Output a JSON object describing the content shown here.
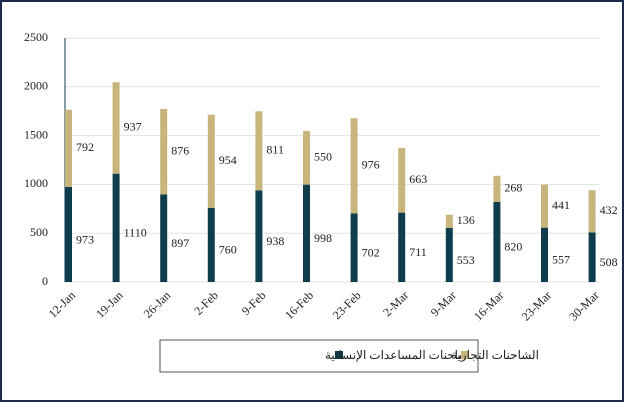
{
  "chart_data": {
    "type": "stacked_bar",
    "categories": [
      "12-Jan",
      "19-Jan",
      "26-Jan",
      "2-Feb",
      "9-Feb",
      "16-Feb",
      "23-Feb",
      "2-Mar",
      "9-Mar",
      "16-Mar",
      "23-Mar",
      "30-Mar"
    ],
    "series": [
      {
        "name": "شاحنات المساعدات الإنسانية",
        "color": "#0e3d4e",
        "values": [
          973,
          1110,
          897,
          760,
          938,
          998,
          702,
          711,
          553,
          820,
          557,
          508
        ]
      },
      {
        "name": "الشاحنات التجارية",
        "color": "#c8b57c",
        "values": [
          792,
          937,
          876,
          954,
          811,
          550,
          976,
          663,
          136,
          268,
          441,
          432
        ]
      }
    ],
    "ylim": [
      0,
      2500
    ],
    "yticks": [
      0,
      500,
      1000,
      1500,
      2000,
      2500
    ],
    "grid": true,
    "legend": "bottom"
  }
}
